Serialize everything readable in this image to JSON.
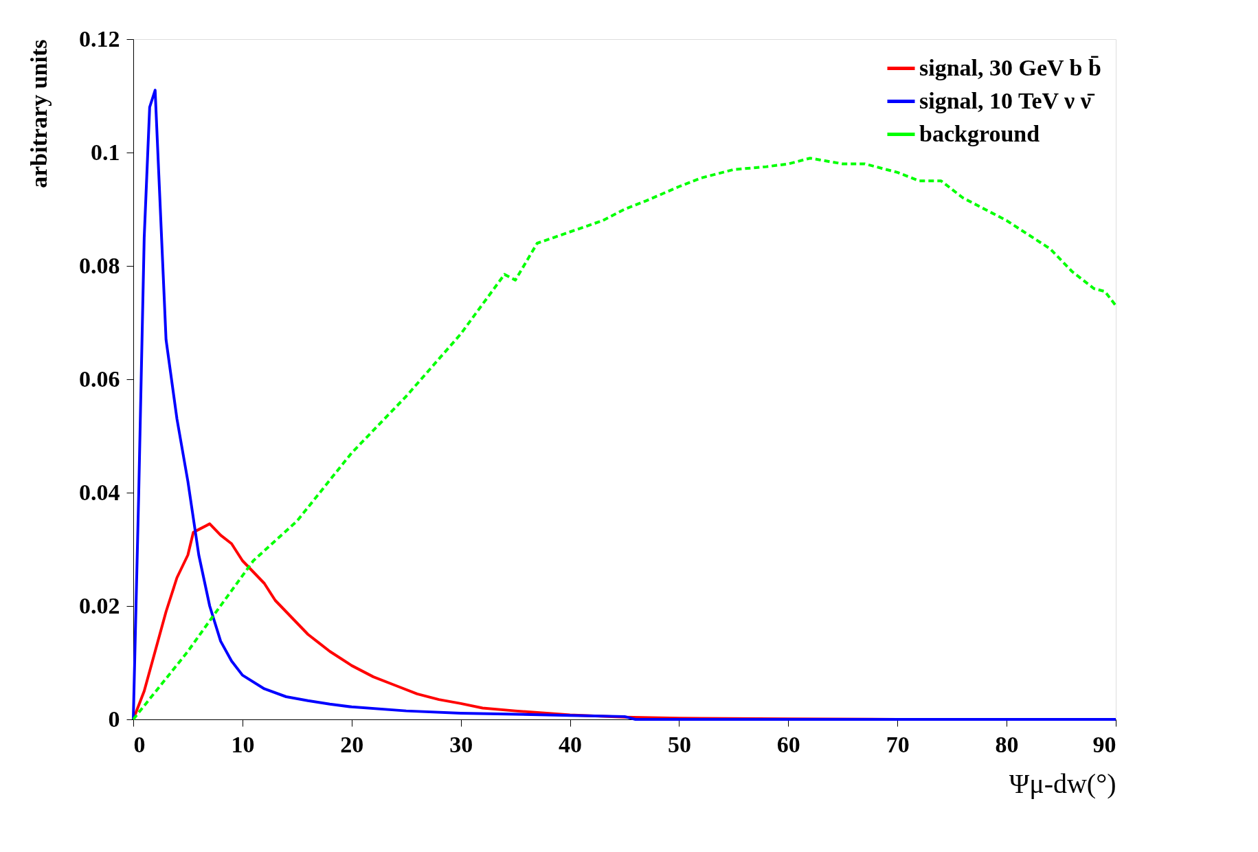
{
  "chart_data": {
    "type": "line",
    "xlabel": "Ψμ-dw(°)",
    "ylabel": "arbitrary units",
    "xlim": [
      0,
      90
    ],
    "xticks": [
      0,
      10,
      20,
      30,
      40,
      50,
      60,
      70,
      80,
      90
    ],
    "ylim": [
      0,
      0.12
    ],
    "yticks": [
      0,
      0.02,
      0.04,
      0.06,
      0.08,
      0.1,
      0.12
    ],
    "grid": false,
    "legend": "top right",
    "marker": "none",
    "series": [
      {
        "name": "signal, 30 GeV b b̄",
        "color": "#ff0000",
        "line_style": "solid",
        "x": [
          0,
          1,
          2,
          3,
          4,
          5,
          5.5,
          6,
          7,
          8,
          9,
          10,
          11,
          12,
          13,
          14,
          15,
          16,
          17,
          18,
          20,
          22,
          24,
          26,
          28,
          30,
          32,
          35,
          40,
          45,
          50,
          60,
          70,
          80,
          90
        ],
        "values": [
          0,
          0.005,
          0.012,
          0.019,
          0.025,
          0.029,
          0.033,
          0.0335,
          0.0345,
          0.0325,
          0.031,
          0.028,
          0.026,
          0.024,
          0.021,
          0.019,
          0.017,
          0.015,
          0.0135,
          0.012,
          0.0095,
          0.0075,
          0.006,
          0.0045,
          0.0035,
          0.0028,
          0.002,
          0.0015,
          0.0008,
          0.0004,
          0.0002,
          0.0001,
          0,
          0,
          0
        ]
      },
      {
        "name": "signal, 10 TeV ν ν̄",
        "color": "#0000ff",
        "line_style": "solid",
        "x": [
          0,
          0.5,
          1,
          1.5,
          2,
          3,
          4,
          5,
          6,
          7,
          8,
          9,
          10,
          12,
          14,
          16,
          18,
          20,
          25,
          30,
          40,
          45,
          46,
          60,
          90
        ],
        "values": [
          0,
          0.04,
          0.085,
          0.108,
          0.111,
          0.067,
          0.053,
          0.042,
          0.029,
          0.02,
          0.0138,
          0.0103,
          0.0078,
          0.0054,
          0.004,
          0.0033,
          0.0027,
          0.0022,
          0.0015,
          0.0011,
          0.0007,
          0.0005,
          0,
          0,
          0
        ]
      },
      {
        "name": "background",
        "color": "#00ff00",
        "line_style": "dashed",
        "x": [
          0,
          5,
          7,
          11,
          15,
          20,
          25,
          30,
          34,
          35,
          37,
          40,
          43,
          45,
          47,
          50,
          52,
          55,
          58,
          60,
          62,
          65,
          67,
          70,
          72,
          74,
          76,
          78,
          80,
          82,
          84,
          86,
          88,
          89,
          90
        ],
        "values": [
          0,
          0.012,
          0.0174,
          0.028,
          0.035,
          0.047,
          0.057,
          0.068,
          0.0785,
          0.0775,
          0.084,
          0.086,
          0.088,
          0.09,
          0.0915,
          0.094,
          0.0955,
          0.097,
          0.0975,
          0.098,
          0.099,
          0.098,
          0.098,
          0.0965,
          0.095,
          0.095,
          0.092,
          0.09,
          0.088,
          0.0855,
          0.083,
          0.079,
          0.076,
          0.0755,
          0.073
        ]
      }
    ]
  }
}
